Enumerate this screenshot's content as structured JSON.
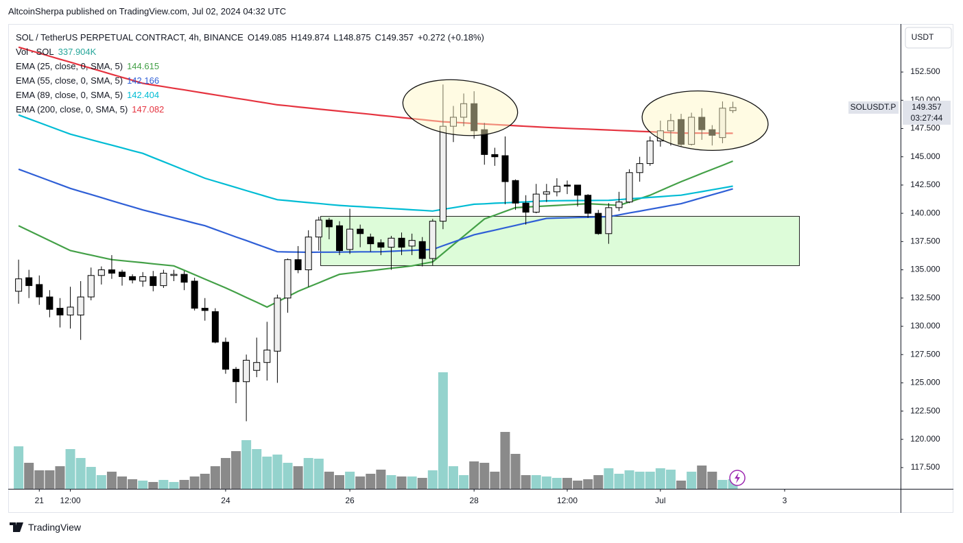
{
  "header": {
    "published": "AltcoinSherpa published on TradingView.com, Jul 02, 2024 04:32 UTC",
    "footer": "TradingView"
  },
  "chart_data": {
    "type": "candlestick",
    "title": "SOL / TetherUS PERPETUAL CONTRACT, 4h, BINANCE",
    "ohlc_labels": [
      "O",
      "H",
      "L",
      "C"
    ],
    "change": "+0.272 (+0.18%)",
    "currency": "USDT",
    "symbol": "SOLUSDT.P",
    "countdown": "03:27:44",
    "up_color": "#f0f0f0",
    "down_color": "#000000",
    "x": [
      0,
      1,
      2,
      3,
      4,
      5,
      6,
      7,
      8,
      9,
      10,
      11,
      12,
      13,
      14,
      15,
      16,
      17,
      18,
      19,
      20,
      21,
      22,
      23,
      24,
      25,
      26,
      27,
      28,
      29,
      30,
      31,
      32,
      33,
      34,
      35,
      36,
      37,
      38,
      39,
      40,
      41,
      42,
      43,
      44,
      45,
      46,
      47,
      48,
      49,
      50,
      51,
      52,
      53,
      54,
      55,
      56,
      57,
      58,
      59,
      60,
      61,
      62,
      63,
      64,
      65,
      66,
      67,
      68,
      69
    ],
    "open": [
      133.1,
      134.3,
      133.7,
      132.6,
      131.6,
      131.0,
      131.0,
      132.6,
      134.5,
      135.0,
      134.8,
      134.4,
      134.0,
      134.4,
      133.6,
      134.5,
      134.6,
      134.0,
      131.6,
      131.3,
      128.6,
      126.2,
      125.1,
      126.1,
      126.8,
      127.8,
      132.5,
      135.9,
      135.0,
      137.9,
      139.4,
      138.9,
      136.8,
      138.6,
      137.9,
      137.4,
      137.0,
      137.8,
      137.1,
      137.5,
      136.0,
      139.3,
      147.7,
      148.5,
      149.7,
      147.4,
      145.2,
      145.1,
      142.9,
      140.9,
      140.1,
      141.7,
      141.9,
      142.5,
      142.5,
      141.6,
      140.0,
      138.2,
      140.5,
      141.0,
      143.6,
      144.4,
      146.4,
      147.3,
      148.3,
      146.1,
      148.5,
      147.4,
      146.7,
      149.085
    ],
    "high": [
      135.9,
      135.0,
      134.5,
      133.2,
      132.5,
      133.5,
      134.0,
      135.2,
      135.3,
      136.3,
      135.0,
      134.6,
      134.8,
      134.9,
      135.0,
      135.0,
      134.9,
      134.3,
      132.5,
      131.6,
      129.0,
      126.4,
      127.5,
      129.0,
      130.4,
      132.8,
      136.0,
      137.1,
      138.5,
      139.7,
      139.6,
      139.3,
      140.4,
      139.0,
      138.2,
      137.7,
      138.0,
      138.3,
      138.2,
      137.9,
      139.5,
      151.4,
      149.5,
      150.6,
      150.8,
      148.0,
      145.8,
      146.8,
      143.0,
      141.6,
      142.6,
      142.6,
      143.1,
      142.9,
      142.5,
      141.7,
      140.3,
      140.9,
      141.9,
      143.9,
      145.0,
      146.8,
      148.2,
      148.8,
      148.8,
      148.9,
      149.3,
      147.8,
      149.9,
      149.874
    ],
    "low": [
      132.0,
      132.5,
      131.9,
      130.8,
      129.9,
      129.8,
      128.8,
      132.3,
      133.7,
      134.2,
      133.6,
      133.8,
      133.5,
      133.1,
      133.4,
      134.0,
      133.2,
      131.4,
      130.5,
      128.5,
      125.8,
      123.2,
      121.6,
      125.5,
      125.2,
      125.0,
      131.2,
      134.7,
      133.5,
      136.7,
      137.7,
      136.3,
      136.4,
      137.0,
      136.6,
      136.3,
      135.0,
      136.3,
      136.3,
      135.3,
      135.4,
      138.6,
      146.3,
      147.7,
      146.6,
      144.3,
      144.2,
      140.8,
      140.3,
      139.0,
      140.0,
      141.0,
      141.5,
      141.7,
      140.6,
      139.6,
      138.1,
      137.3,
      140.2,
      140.9,
      142.8,
      144.2,
      145.9,
      146.0,
      145.9,
      146.0,
      146.5,
      146.0,
      146.2,
      148.875
    ],
    "close": [
      134.2,
      133.6,
      132.6,
      131.5,
      131.0,
      131.7,
      132.6,
      134.5,
      135.0,
      134.7,
      134.4,
      134.1,
      134.4,
      133.6,
      134.7,
      134.6,
      133.9,
      131.6,
      131.4,
      128.6,
      126.2,
      125.1,
      127.0,
      126.8,
      127.9,
      132.5,
      135.9,
      135.0,
      137.9,
      139.4,
      138.8,
      136.7,
      138.6,
      138.2,
      137.3,
      137.0,
      137.8,
      137.0,
      137.6,
      136.0,
      139.3,
      147.7,
      148.5,
      149.7,
      147.3,
      145.2,
      145.0,
      142.8,
      140.9,
      140.1,
      141.7,
      141.9,
      142.4,
      142.4,
      141.6,
      140.0,
      138.2,
      140.5,
      141.0,
      143.6,
      144.4,
      146.4,
      147.3,
      148.2,
      146.1,
      148.5,
      147.4,
      146.9,
      149.3,
      149.357
    ],
    "volume": {
      "name": "Vol · SOL",
      "up_color": "#94d3cd",
      "down_color": "#8a8a8a",
      "last_label": "337.904K",
      "values": [
        1497000,
        917000,
        652000,
        652000,
        797000,
        1400000,
        1086000,
        772000,
        483000,
        604000,
        435000,
        338000,
        290000,
        241000,
        314000,
        241000,
        314000,
        435000,
        531000,
        797000,
        1086000,
        1328000,
        1714000,
        1400000,
        1135000,
        1207000,
        917000,
        797000,
        1086000,
        1062000,
        604000,
        483000,
        604000,
        435000,
        531000,
        676000,
        483000,
        435000,
        435000,
        386000,
        652000,
        4104000,
        797000,
        483000,
        966000,
        917000,
        604000,
        2004000,
        1231000,
        483000,
        483000,
        435000,
        386000,
        386000,
        290000,
        338000,
        483000,
        724000,
        531000,
        652000,
        604000,
        604000,
        724000,
        676000,
        290000,
        604000,
        821000,
        604000,
        314000,
        337904
      ]
    },
    "series": [
      {
        "name": "EMA (25, close, 0, SMA, 5)",
        "color": "#43a047",
        "values": [
          138.9,
          138.46,
          138.02,
          137.58,
          137.14,
          136.7,
          136.5,
          136.3,
          136.1,
          135.9,
          135.81,
          135.72,
          135.63,
          135.53,
          135.44,
          135.35,
          134.96,
          134.57,
          134.18,
          133.79,
          133.4,
          132.98,
          132.55,
          132.13,
          131.7,
          132.17,
          132.63,
          133.1,
          133.48,
          133.85,
          134.23,
          134.6,
          134.71,
          134.81,
          134.92,
          135.03,
          135.14,
          135.24,
          135.35,
          135.53,
          135.7,
          136.46,
          137.22,
          137.98,
          138.74,
          139.5,
          139.83,
          140.17,
          140.5,
          140.55,
          140.6,
          140.65,
          140.7,
          140.75,
          140.8,
          140.85,
          140.8,
          140.75,
          140.7,
          141.0,
          141.3,
          141.6,
          142.0,
          142.4,
          142.8,
          143.16,
          143.53,
          143.89,
          144.25,
          144.615
        ]
      },
      {
        "name": "EMA (55, close, 0, SMA, 5)",
        "color": "#2f5fd6",
        "values": [
          143.9,
          143.56,
          143.22,
          142.88,
          142.54,
          142.2,
          141.93,
          141.66,
          141.39,
          141.11,
          140.84,
          140.57,
          140.3,
          140.07,
          139.83,
          139.6,
          139.37,
          139.13,
          138.9,
          138.57,
          138.24,
          137.91,
          137.59,
          137.26,
          136.93,
          136.6,
          136.58,
          136.57,
          136.55,
          136.56,
          136.56,
          136.57,
          136.58,
          136.59,
          136.59,
          136.6,
          136.64,
          136.68,
          136.72,
          136.76,
          136.8,
          137.13,
          137.45,
          137.78,
          138.1,
          138.31,
          138.51,
          138.72,
          138.93,
          139.14,
          139.34,
          139.55,
          139.58,
          139.6,
          139.63,
          139.65,
          139.68,
          139.7,
          139.86,
          140.03,
          140.19,
          140.36,
          140.52,
          140.69,
          140.85,
          141.11,
          141.38,
          141.64,
          141.9,
          142.166
        ]
      },
      {
        "name": "EMA (89, close, 0, SMA, 5)",
        "color": "#00bcd4",
        "values": [
          148.7,
          148.36,
          148.02,
          147.68,
          147.34,
          147.0,
          146.76,
          146.51,
          146.27,
          146.03,
          145.79,
          145.54,
          145.3,
          144.93,
          144.57,
          144.2,
          143.83,
          143.47,
          143.1,
          142.83,
          142.56,
          142.29,
          142.01,
          141.74,
          141.47,
          141.2,
          141.12,
          141.03,
          140.95,
          140.87,
          140.78,
          140.7,
          140.64,
          140.59,
          140.53,
          140.48,
          140.42,
          140.37,
          140.31,
          140.26,
          140.2,
          140.35,
          140.5,
          140.65,
          140.8,
          140.84,
          140.89,
          140.93,
          140.97,
          141.01,
          141.06,
          141.1,
          141.11,
          141.12,
          141.13,
          141.13,
          141.14,
          141.15,
          141.21,
          141.28,
          141.34,
          141.41,
          141.47,
          141.54,
          141.6,
          141.76,
          141.92,
          142.08,
          142.24,
          142.404
        ]
      },
      {
        "name": "EMA (200, close, 0, SMA, 5)",
        "color": "#e5333f",
        "values": [
          154.7,
          154.43,
          154.17,
          153.9,
          153.63,
          153.37,
          153.1,
          152.83,
          152.57,
          152.3,
          152.03,
          151.77,
          151.5,
          151.35,
          151.21,
          151.06,
          150.92,
          150.77,
          150.62,
          150.48,
          150.33,
          150.18,
          150.04,
          149.89,
          149.75,
          149.6,
          149.51,
          149.41,
          149.32,
          149.22,
          149.13,
          149.04,
          148.94,
          148.85,
          148.76,
          148.66,
          148.57,
          148.47,
          148.38,
          148.29,
          148.19,
          148.1,
          148.05,
          148.0,
          147.95,
          147.9,
          147.85,
          147.8,
          147.75,
          147.7,
          147.65,
          147.6,
          147.56,
          147.52,
          147.48,
          147.45,
          147.41,
          147.37,
          147.33,
          147.29,
          147.25,
          147.22,
          147.18,
          147.14,
          147.1,
          147.1,
          147.09,
          147.09,
          147.08,
          147.082
        ]
      }
    ],
    "ylim": [
      115.62,
      156.75
    ],
    "yticks": [
      {
        "value": 117.5,
        "label": "117.500"
      },
      {
        "value": 120,
        "label": "120.000"
      },
      {
        "value": 122.5,
        "label": "122.500"
      },
      {
        "value": 125,
        "label": "125.000"
      },
      {
        "value": 127.5,
        "label": "127.500"
      },
      {
        "value": 130,
        "label": "130.000"
      },
      {
        "value": 132.5,
        "label": "132.500"
      },
      {
        "value": 135,
        "label": "135.000"
      },
      {
        "value": 137.5,
        "label": "137.500"
      },
      {
        "value": 140,
        "label": "140.000"
      },
      {
        "value": 142.5,
        "label": "142.500"
      },
      {
        "value": 145,
        "label": "145.000"
      },
      {
        "value": 147.5,
        "label": "147.500"
      },
      {
        "value": 150,
        "label": "150.000"
      },
      {
        "value": 152.5,
        "label": "152.500"
      }
    ],
    "xlim": [
      -1,
      85.2
    ],
    "xticks": [
      {
        "value": 2,
        "label": "21"
      },
      {
        "value": 5,
        "label": "12:00"
      },
      {
        "value": 20,
        "label": "24"
      },
      {
        "value": 32,
        "label": "26"
      },
      {
        "value": 44,
        "label": "28"
      },
      {
        "value": 53,
        "label": "12:00"
      },
      {
        "value": 62,
        "label": "Jul"
      },
      {
        "value": 74,
        "label": "3"
      }
    ]
  }
}
